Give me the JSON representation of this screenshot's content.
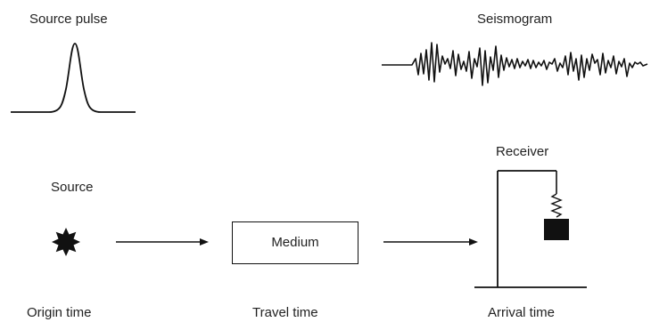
{
  "labels": {
    "source_pulse": "Source pulse",
    "seismogram": "Seismogram",
    "receiver": "Receiver",
    "source": "Source",
    "medium": "Medium",
    "origin_time": "Origin time",
    "travel_time": "Travel time",
    "arrival_time": "Arrival time"
  },
  "icons": {
    "source_symbol": "starburst-icon",
    "receiver_symbol": "seismometer-icon"
  },
  "colors": {
    "ink": "#111111",
    "text": "#222222"
  }
}
